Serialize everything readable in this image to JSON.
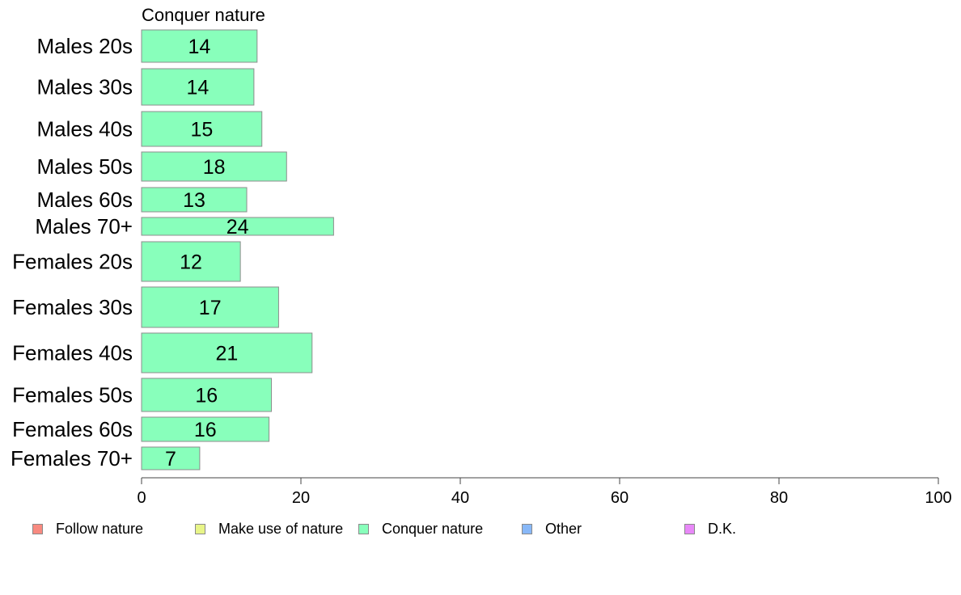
{
  "chart_data": {
    "type": "bar",
    "orientation": "horizontal",
    "title": "Conquer nature",
    "categories": [
      "Males 20s",
      "Males 30s",
      "Males 40s",
      "Males 50s",
      "Males 60s",
      "Males 70+",
      "Females 20s",
      "Females 30s",
      "Females 40s",
      "Females 50s",
      "Females 60s",
      "Females 70+"
    ],
    "series": [
      {
        "name": "Conquer nature",
        "color": "#88ffbb",
        "values": [
          14.5,
          14.1,
          15.1,
          18.2,
          13.2,
          24.1,
          12.4,
          17.2,
          21.4,
          16.3,
          16.0,
          7.3
        ],
        "labels": [
          "14",
          "14",
          "15",
          "18",
          "13",
          "24",
          "12",
          "17",
          "21",
          "16",
          "16",
          "7"
        ]
      }
    ],
    "xlim": [
      0,
      100
    ],
    "xticks": [
      0,
      20,
      40,
      60,
      80,
      100
    ],
    "xtick_labels": [
      "0",
      "20",
      "40",
      "60",
      "80",
      "100"
    ],
    "grid": false,
    "legend": {
      "position": "bottom",
      "items": [
        {
          "label": "Follow nature",
          "color": "#f88a80"
        },
        {
          "label": "Make use of nature",
          "color": "#e8f588"
        },
        {
          "label": "Conquer nature",
          "color": "#88ffbb"
        },
        {
          "label": "Other",
          "color": "#88b8f8"
        },
        {
          "label": "D.K.",
          "color": "#e888f8"
        }
      ]
    }
  }
}
